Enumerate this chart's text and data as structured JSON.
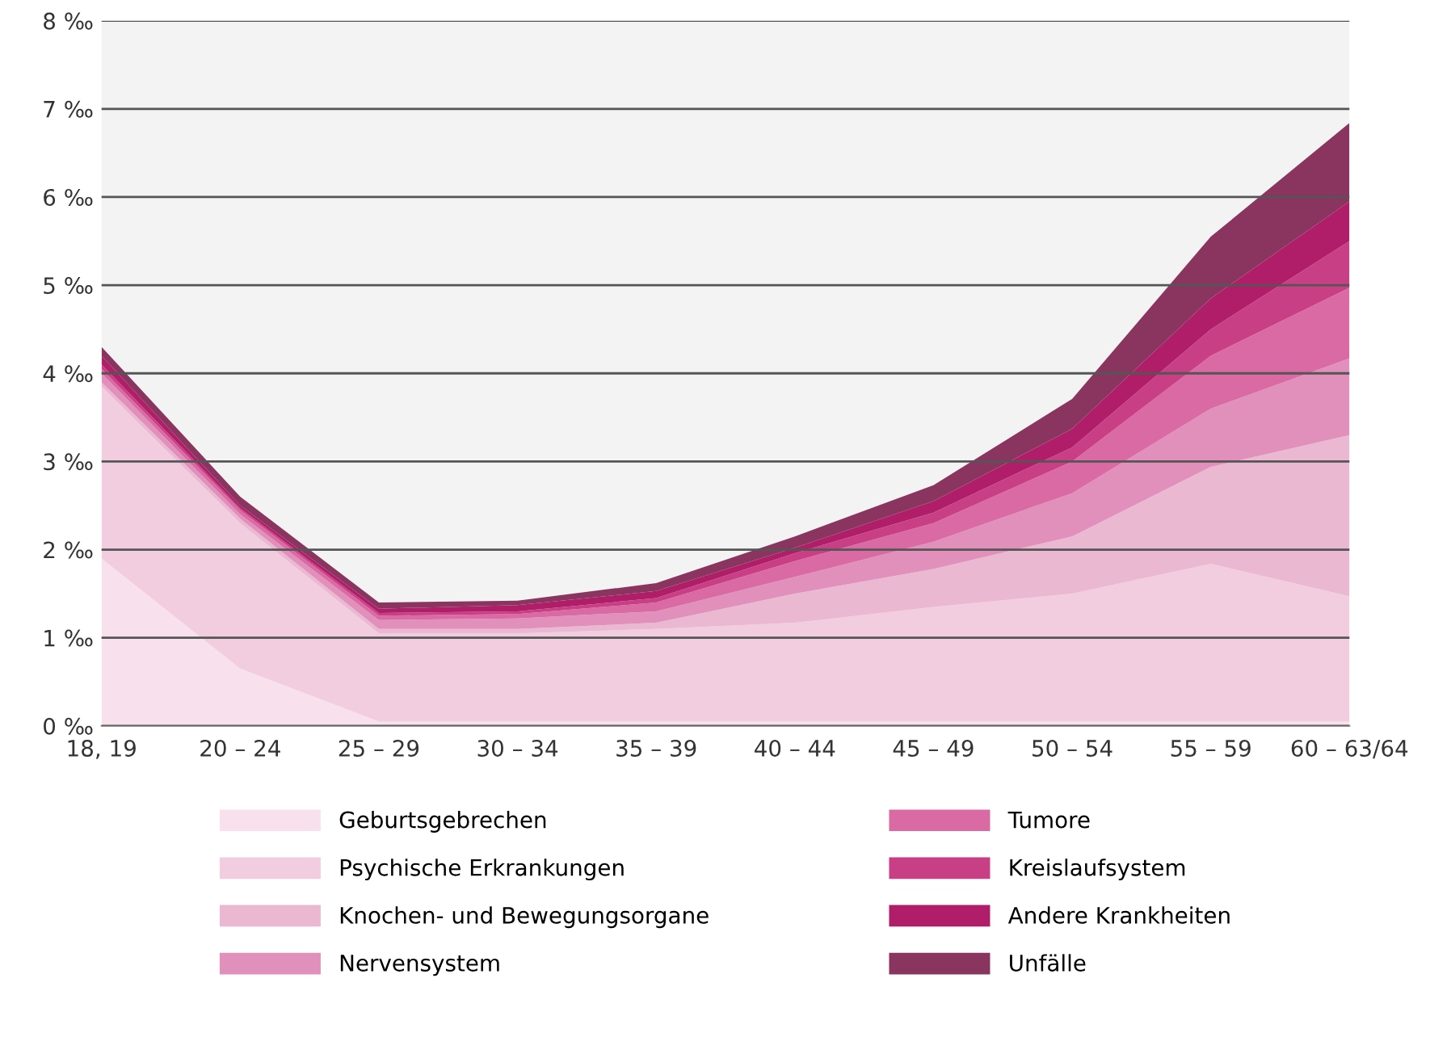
{
  "chart_data": {
    "type": "area",
    "stacked": true,
    "categories": [
      "18, 19",
      "20 – 24",
      "25 – 29",
      "30 – 34",
      "35 – 39",
      "40 – 44",
      "45 – 49",
      "50 – 54",
      "55 – 59",
      "60 – 63/64"
    ],
    "series": [
      {
        "name": "Geburtsgebrechen",
        "color": "#f8e1ec",
        "values": [
          1.9,
          0.65,
          0.05,
          0.05,
          0.05,
          0.05,
          0.05,
          0.05,
          0.05,
          0.05
        ]
      },
      {
        "name": "Psychische Erkrankungen",
        "color": "#f2cde0",
        "values": [
          1.95,
          1.65,
          1.0,
          1.0,
          1.05,
          1.12,
          1.3,
          1.45,
          1.79,
          1.42
        ]
      },
      {
        "name": "Knochen- und Bewegungsorgane",
        "color": "#ebb8d2",
        "values": [
          0.05,
          0.05,
          0.05,
          0.05,
          0.07,
          0.33,
          0.43,
          0.65,
          1.1,
          1.83
        ]
      },
      {
        "name": "Nervensystem",
        "color": "#e090ba",
        "values": [
          0.1,
          0.05,
          0.1,
          0.12,
          0.13,
          0.19,
          0.31,
          0.49,
          0.66,
          0.87
        ]
      },
      {
        "name": "Tumore",
        "color": "#da6aa3",
        "values": [
          0.05,
          0.05,
          0.05,
          0.05,
          0.1,
          0.18,
          0.21,
          0.36,
          0.6,
          0.8
        ]
      },
      {
        "name": "Kreislaufsystem",
        "color": "#c93f85",
        "values": [
          0.05,
          0.02,
          0.03,
          0.03,
          0.05,
          0.09,
          0.12,
          0.16,
          0.3,
          0.53
        ]
      },
      {
        "name": "Andere Krankheiten",
        "color": "#b01e6a",
        "values": [
          0.1,
          0.03,
          0.05,
          0.07,
          0.08,
          0.06,
          0.13,
          0.21,
          0.35,
          0.45
        ]
      },
      {
        "name": "Unfälle",
        "color": "#8a3560",
        "values": [
          0.1,
          0.1,
          0.07,
          0.05,
          0.09,
          0.13,
          0.18,
          0.34,
          0.7,
          0.89
        ]
      }
    ],
    "ylim": [
      0,
      8
    ],
    "yticks": [
      {
        "value": 0,
        "label": "0 ‰"
      },
      {
        "value": 1,
        "label": "1 ‰"
      },
      {
        "value": 2,
        "label": "2 ‰"
      },
      {
        "value": 3,
        "label": "3 ‰"
      },
      {
        "value": 4,
        "label": "4 ‰"
      },
      {
        "value": 5,
        "label": "5 ‰"
      },
      {
        "value": 6,
        "label": "6 ‰"
      },
      {
        "value": 7,
        "label": "7 ‰"
      },
      {
        "value": 8,
        "label": "8 ‰"
      }
    ],
    "grid": "y",
    "legend": "bottom"
  }
}
